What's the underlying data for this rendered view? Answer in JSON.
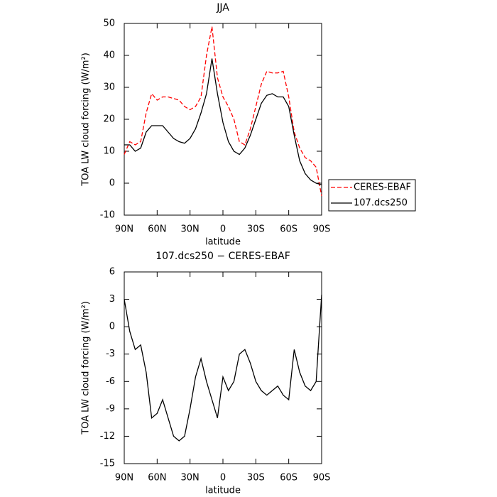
{
  "chart_data": [
    {
      "type": "line",
      "title": "JJA",
      "xlabel": "latitude",
      "ylabel": "TOA LW cloud forcing (W/m²)",
      "x": [
        90,
        85,
        80,
        75,
        70,
        65,
        60,
        55,
        50,
        45,
        40,
        35,
        30,
        25,
        20,
        15,
        10,
        5,
        0,
        -5,
        -10,
        -15,
        -20,
        -25,
        -30,
        -35,
        -40,
        -45,
        -50,
        -55,
        -60,
        -65,
        -70,
        -75,
        -80,
        -85,
        -90
      ],
      "series": [
        {
          "name": "CERES-EBAF",
          "color": "#ff0000",
          "line_style": "dashed",
          "values": [
            9,
            13,
            12,
            13,
            22,
            28,
            26,
            27,
            27,
            26.5,
            26,
            24,
            23,
            24,
            27,
            40,
            49,
            33,
            27,
            24,
            20,
            13,
            12,
            17,
            24,
            31,
            35,
            34.5,
            34.5,
            35,
            27,
            16,
            11,
            8,
            7,
            5,
            -4
          ]
        },
        {
          "name": "107.dcs250",
          "color": "#000000",
          "line_style": "solid",
          "values": [
            12,
            12,
            10,
            11,
            16,
            18,
            18,
            18,
            16,
            14,
            13,
            12.5,
            14,
            17,
            22,
            28,
            39,
            28,
            19,
            13,
            10,
            9,
            11,
            15,
            20,
            25,
            27.5,
            28,
            27,
            27,
            24,
            15,
            7,
            3,
            1,
            0,
            -0.5
          ]
        }
      ],
      "xlim": [
        90,
        -90
      ],
      "xticks": [
        {
          "value": 90,
          "label": "90N"
        },
        {
          "value": 60,
          "label": "60N"
        },
        {
          "value": 30,
          "label": "30N"
        },
        0,
        {
          "value": -30,
          "label": "30S"
        },
        {
          "value": -60,
          "label": "60S"
        },
        {
          "value": -90,
          "label": "90S"
        }
      ],
      "ylim": [
        -10,
        50
      ],
      "yticks": [
        -10,
        0,
        10,
        20,
        30,
        40,
        50
      ],
      "legend": "right"
    },
    {
      "type": "line",
      "title": "107.dcs250 − CERES-EBAF",
      "xlabel": "latitude",
      "ylabel": "TOA LW cloud forcing (W/m²)",
      "x": [
        90,
        85,
        80,
        75,
        70,
        65,
        60,
        55,
        50,
        45,
        40,
        35,
        30,
        25,
        20,
        15,
        10,
        5,
        0,
        -5,
        -10,
        -15,
        -20,
        -25,
        -30,
        -35,
        -40,
        -45,
        -50,
        -55,
        -60,
        -65,
        -70,
        -75,
        -80,
        -85,
        -90
      ],
      "series": [
        {
          "color": "#000000",
          "line_style": "solid",
          "values": [
            3,
            -0.5,
            -2.5,
            -2,
            -5,
            -10,
            -9.5,
            -8,
            -10,
            -12,
            -12.5,
            -12,
            -9,
            -5.5,
            -3.5,
            -6,
            -8,
            -10,
            -5.5,
            -7,
            -6,
            -3,
            -2.5,
            -4,
            -6,
            -7,
            -7.5,
            -7,
            -6.5,
            -7.5,
            -8,
            -2.5,
            -5,
            -6.5,
            -7,
            -6,
            3.5
          ]
        }
      ],
      "xlim": [
        90,
        -90
      ],
      "xticks": [
        {
          "value": 90,
          "label": "90N"
        },
        {
          "value": 60,
          "label": "60N"
        },
        {
          "value": 30,
          "label": "30N"
        },
        0,
        {
          "value": -30,
          "label": "30S"
        },
        {
          "value": -60,
          "label": "60S"
        },
        {
          "value": -90,
          "label": "90S"
        }
      ],
      "ylim": [
        -15,
        6
      ],
      "yticks": [
        -15,
        -12,
        -9,
        -6,
        -3,
        0,
        3,
        6
      ]
    }
  ]
}
